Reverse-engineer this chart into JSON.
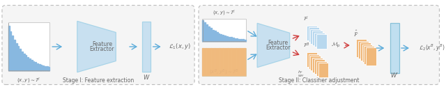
{
  "fig_width": 6.4,
  "fig_height": 1.32,
  "dpi": 100,
  "light_blue": "#a8d4e8",
  "blue_fill": "#c8e0f0",
  "blue_fill2": "#b8d8ee",
  "orange_fill": "#f0b87a",
  "orange_light": "#f8ddb0",
  "arrow_blue": "#5aabda",
  "arrow_red": "#d04040",
  "text_color": "#666666",
  "bar_color": "#88b8e0",
  "stage1_label": "Stage I: Feature extraction",
  "stage2_label": "Stage II: Classifier adjustment"
}
